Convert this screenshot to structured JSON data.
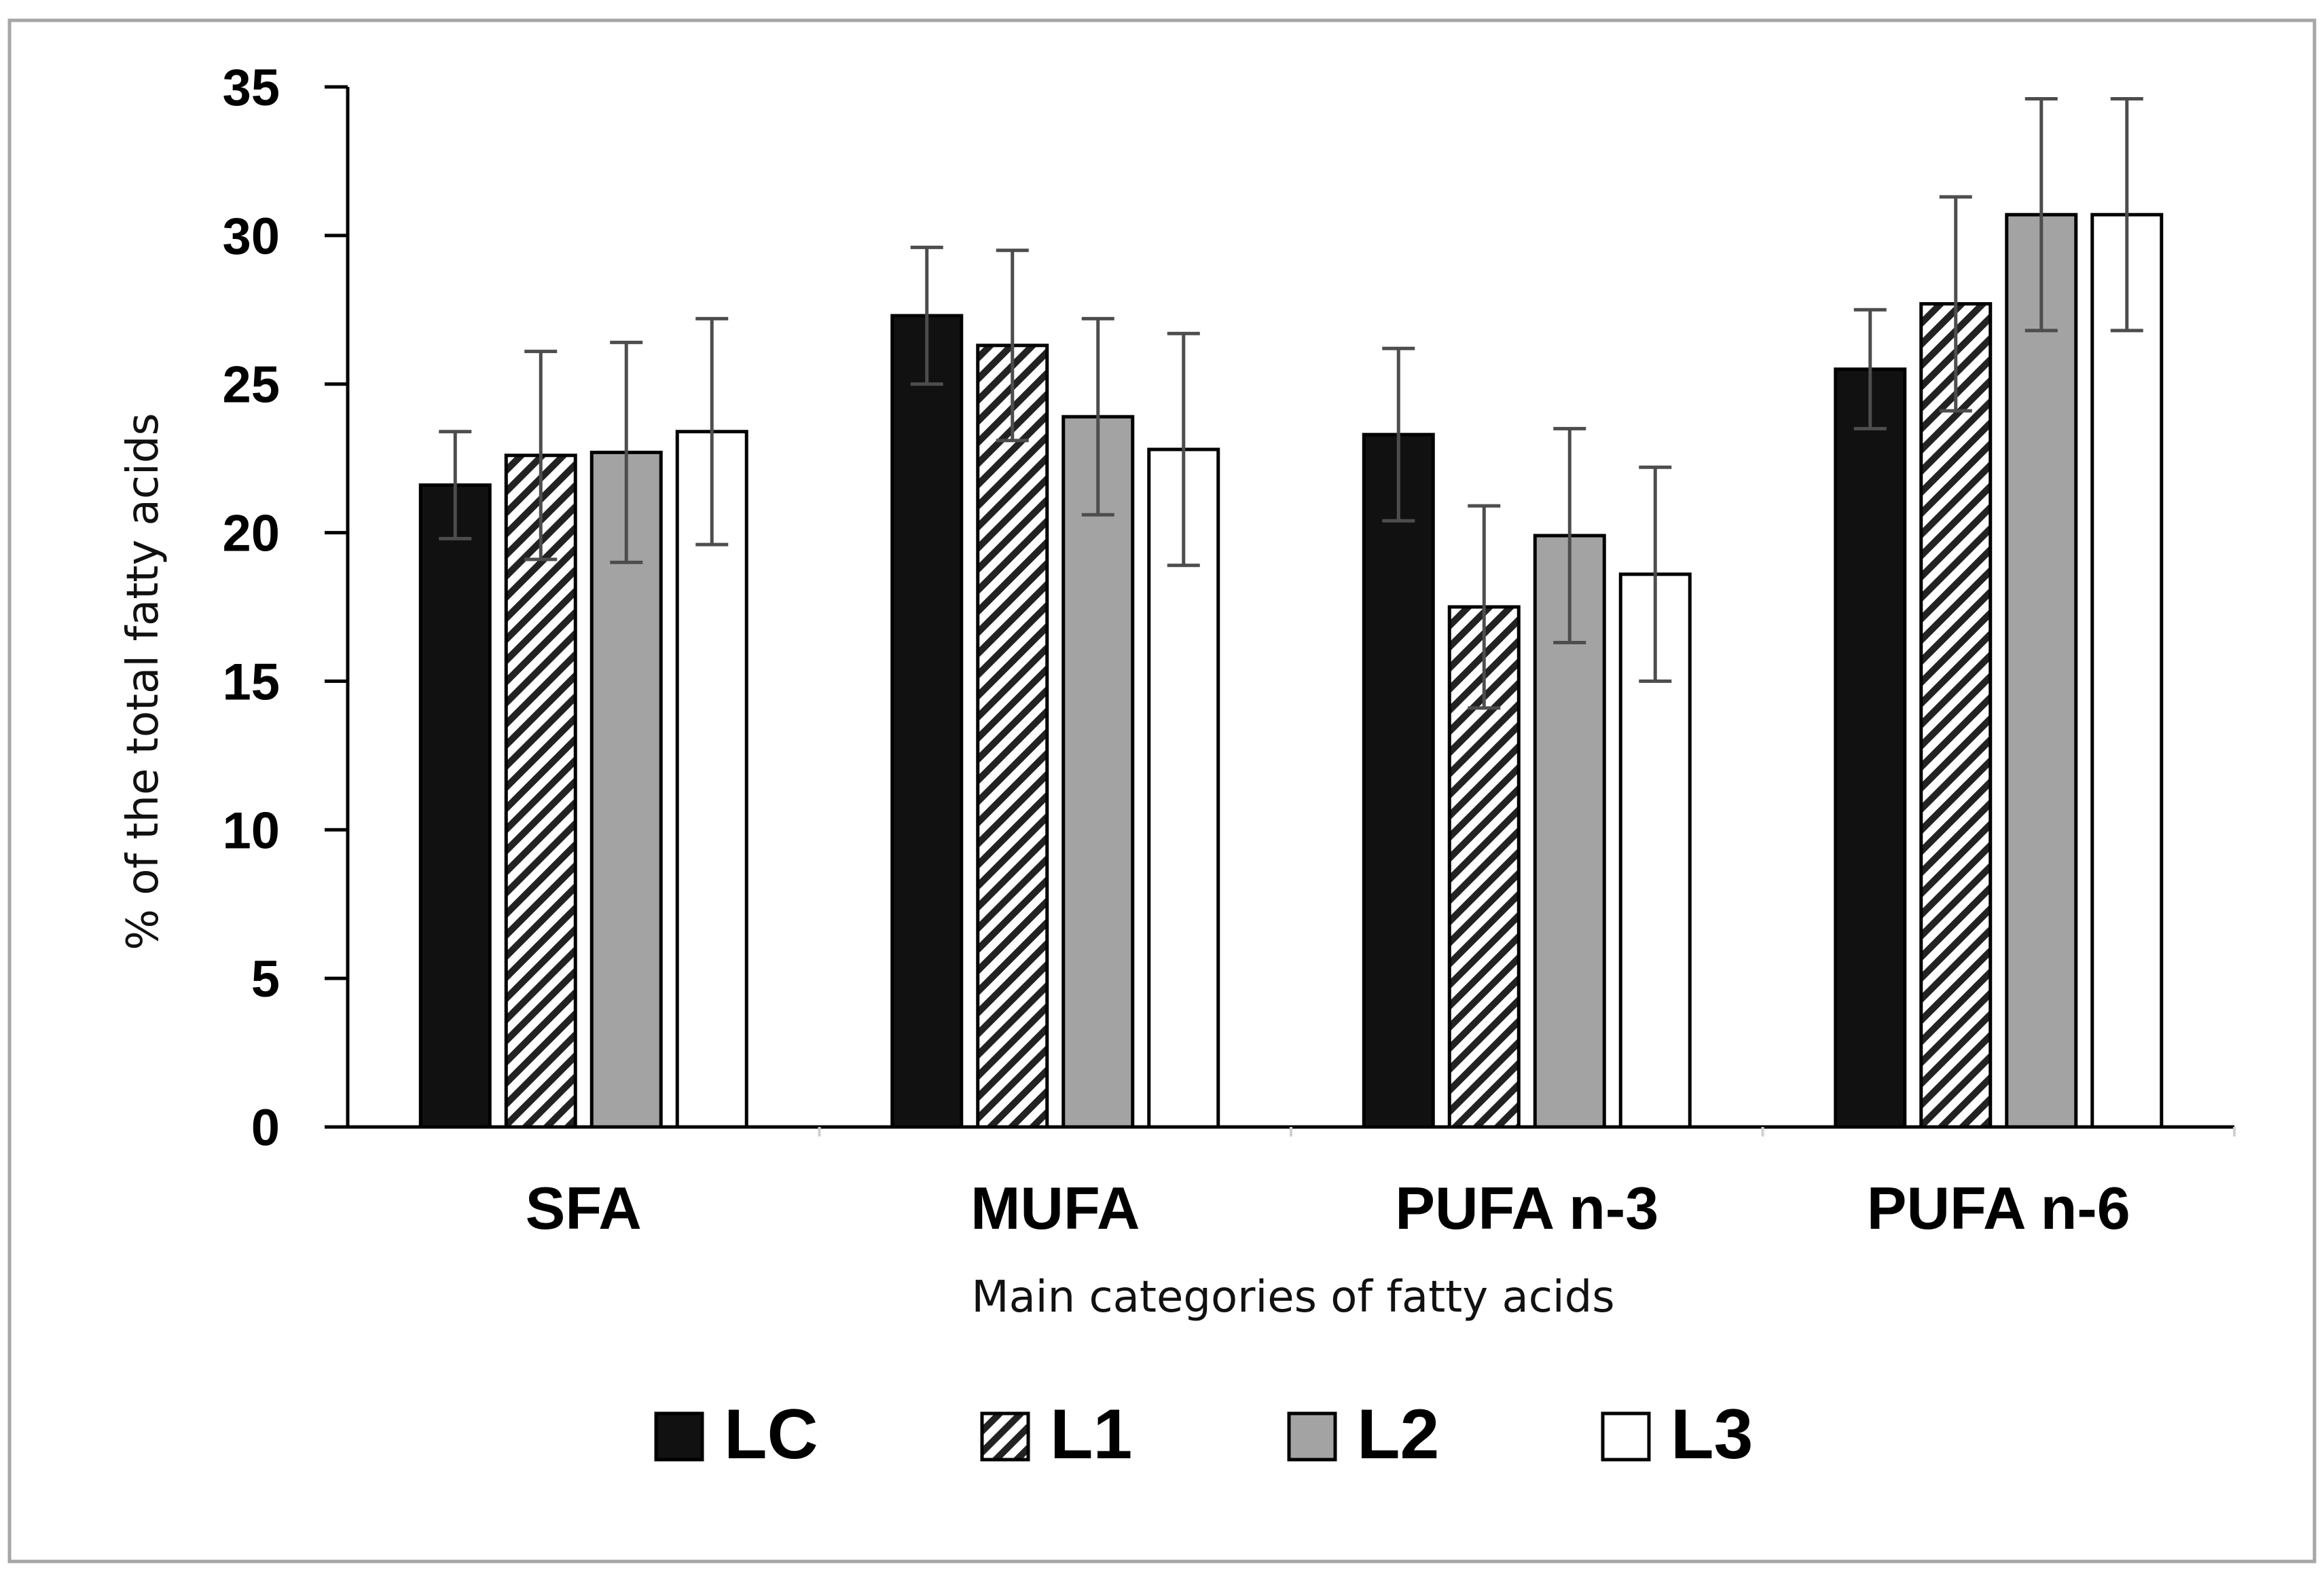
{
  "chart_data": {
    "type": "bar",
    "title": "",
    "xlabel": "Main categories of fatty acids",
    "ylabel": "% of the total fatty acids",
    "ylim": [
      0,
      35
    ],
    "yticks": [
      0,
      5,
      10,
      15,
      20,
      25,
      30,
      35
    ],
    "grid": false,
    "legend_position": "bottom",
    "categories": [
      "SFA",
      "MUFA",
      "PUFA n-3",
      "PUFA n-6"
    ],
    "series": [
      {
        "name": "LC",
        "style": "solid-black",
        "values": [
          21.6,
          27.3,
          23.3,
          25.5
        ],
        "errors": [
          1.8,
          2.3,
          2.9,
          2.0
        ]
      },
      {
        "name": "L1",
        "style": "hatched",
        "values": [
          22.6,
          26.3,
          17.5,
          27.7
        ],
        "errors": [
          3.5,
          3.2,
          3.4,
          3.6
        ]
      },
      {
        "name": "L2",
        "style": "solid-gray",
        "values": [
          22.7,
          23.9,
          19.9,
          30.7
        ],
        "errors": [
          3.7,
          3.3,
          3.6,
          3.9
        ]
      },
      {
        "name": "L3",
        "style": "white-outline",
        "values": [
          23.4,
          22.8,
          18.6,
          30.7
        ],
        "errors": [
          3.8,
          3.9,
          3.6,
          3.9
        ]
      }
    ]
  },
  "colors": {
    "LC": "#111111",
    "L1": "#ffffff",
    "L2": "#a3a3a3",
    "L3": "#ffffff",
    "hatch": "#222222",
    "error_bar": "#4d4d4d",
    "axis": "#000000",
    "frame": "#a6a6a6"
  }
}
